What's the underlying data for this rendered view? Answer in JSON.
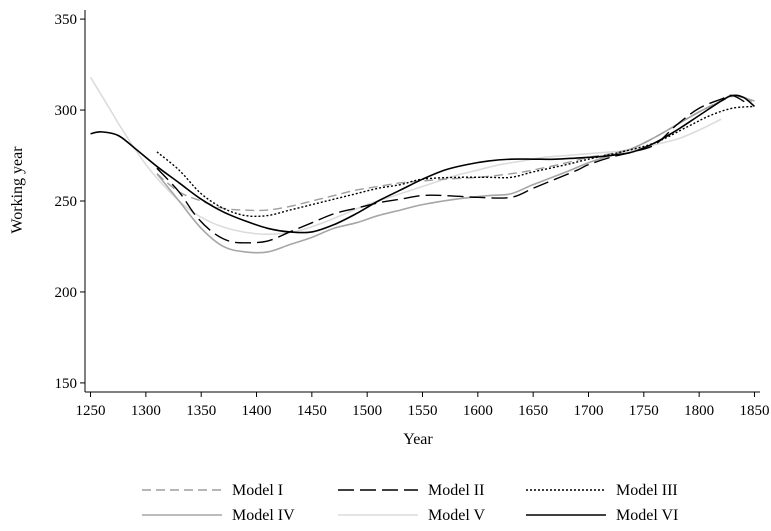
{
  "chart_data": {
    "type": "line",
    "title": "",
    "xlabel": "Year",
    "ylabel": "Working year",
    "xlim": [
      1245,
      1855
    ],
    "ylim": [
      145,
      355
    ],
    "xticks": [
      1250,
      1300,
      1350,
      1400,
      1450,
      1500,
      1550,
      1600,
      1650,
      1700,
      1750,
      1800,
      1850
    ],
    "yticks": [
      150,
      200,
      250,
      300,
      350
    ],
    "grid": false,
    "legend_position": "bottom",
    "series": [
      {
        "name": "Model I",
        "color": "#9e9e9e",
        "dash": "dashed",
        "points": [
          [
            1310,
            265
          ],
          [
            1330,
            255
          ],
          [
            1350,
            250
          ],
          [
            1370,
            246
          ],
          [
            1390,
            245
          ],
          [
            1410,
            245
          ],
          [
            1430,
            247
          ],
          [
            1450,
            250
          ],
          [
            1470,
            253
          ],
          [
            1490,
            256
          ],
          [
            1510,
            258
          ],
          [
            1530,
            260
          ],
          [
            1550,
            261
          ],
          [
            1570,
            262
          ],
          [
            1600,
            263
          ],
          [
            1630,
            265
          ],
          [
            1650,
            267
          ],
          [
            1680,
            271
          ],
          [
            1700,
            274
          ],
          [
            1720,
            276
          ],
          [
            1740,
            279
          ],
          [
            1760,
            285
          ],
          [
            1780,
            292
          ],
          [
            1800,
            299
          ],
          [
            1820,
            305
          ],
          [
            1835,
            308
          ],
          [
            1850,
            304
          ]
        ]
      },
      {
        "name": "Model II",
        "color": "#000000",
        "dash": "longdash",
        "points": [
          [
            1310,
            268
          ],
          [
            1330,
            255
          ],
          [
            1345,
            242
          ],
          [
            1360,
            233
          ],
          [
            1375,
            228
          ],
          [
            1390,
            227
          ],
          [
            1410,
            228
          ],
          [
            1430,
            233
          ],
          [
            1450,
            238
          ],
          [
            1470,
            243
          ],
          [
            1490,
            246
          ],
          [
            1510,
            249
          ],
          [
            1530,
            251
          ],
          [
            1550,
            253
          ],
          [
            1570,
            253
          ],
          [
            1600,
            252
          ],
          [
            1630,
            252
          ],
          [
            1650,
            257
          ],
          [
            1670,
            262
          ],
          [
            1690,
            267
          ],
          [
            1700,
            270
          ],
          [
            1720,
            274
          ],
          [
            1740,
            277
          ],
          [
            1760,
            281
          ],
          [
            1780,
            292
          ],
          [
            1800,
            301
          ],
          [
            1820,
            306
          ],
          [
            1830,
            308
          ],
          [
            1845,
            303
          ]
        ]
      },
      {
        "name": "Model III",
        "color": "#000000",
        "dash": "dotted",
        "points": [
          [
            1310,
            277
          ],
          [
            1330,
            267
          ],
          [
            1350,
            254
          ],
          [
            1370,
            246
          ],
          [
            1390,
            242
          ],
          [
            1410,
            242
          ],
          [
            1430,
            245
          ],
          [
            1450,
            248
          ],
          [
            1470,
            251
          ],
          [
            1490,
            254
          ],
          [
            1510,
            257
          ],
          [
            1530,
            259
          ],
          [
            1550,
            262
          ],
          [
            1580,
            263
          ],
          [
            1610,
            263
          ],
          [
            1630,
            263
          ],
          [
            1650,
            266
          ],
          [
            1680,
            270
          ],
          [
            1700,
            273
          ],
          [
            1730,
            277
          ],
          [
            1760,
            282
          ],
          [
            1790,
            291
          ],
          [
            1810,
            297
          ],
          [
            1830,
            301
          ],
          [
            1850,
            302
          ]
        ]
      },
      {
        "name": "Model IV",
        "color": "#a6a6a6",
        "dash": "solid",
        "points": [
          [
            1310,
            265
          ],
          [
            1330,
            250
          ],
          [
            1350,
            235
          ],
          [
            1370,
            225
          ],
          [
            1390,
            222
          ],
          [
            1410,
            222
          ],
          [
            1430,
            226
          ],
          [
            1450,
            230
          ],
          [
            1470,
            235
          ],
          [
            1490,
            238
          ],
          [
            1510,
            242
          ],
          [
            1530,
            245
          ],
          [
            1550,
            248
          ],
          [
            1580,
            251
          ],
          [
            1610,
            253
          ],
          [
            1630,
            254
          ],
          [
            1650,
            259
          ],
          [
            1680,
            266
          ],
          [
            1700,
            271
          ],
          [
            1720,
            275
          ],
          [
            1740,
            279
          ],
          [
            1760,
            285
          ],
          [
            1780,
            292
          ],
          [
            1800,
            299
          ],
          [
            1820,
            305
          ],
          [
            1830,
            308
          ],
          [
            1850,
            305
          ]
        ]
      },
      {
        "name": "Model V",
        "color": "#dcdcdc",
        "dash": "solid",
        "points": [
          [
            1250,
            318
          ],
          [
            1265,
            303
          ],
          [
            1280,
            288
          ],
          [
            1300,
            270
          ],
          [
            1320,
            256
          ],
          [
            1340,
            245
          ],
          [
            1360,
            238
          ],
          [
            1380,
            234
          ],
          [
            1400,
            232
          ],
          [
            1420,
            232
          ],
          [
            1440,
            234
          ],
          [
            1460,
            238
          ],
          [
            1480,
            243
          ],
          [
            1500,
            248
          ],
          [
            1520,
            252
          ],
          [
            1540,
            256
          ],
          [
            1560,
            260
          ],
          [
            1580,
            264
          ],
          [
            1600,
            267
          ],
          [
            1620,
            270
          ],
          [
            1640,
            272
          ],
          [
            1660,
            274
          ],
          [
            1680,
            275
          ],
          [
            1700,
            276
          ],
          [
            1720,
            277
          ],
          [
            1740,
            278
          ],
          [
            1760,
            281
          ],
          [
            1780,
            284
          ],
          [
            1800,
            289
          ],
          [
            1820,
            295
          ]
        ]
      },
      {
        "name": "Model VI",
        "color": "#000000",
        "dash": "solid",
        "points": [
          [
            1250,
            287
          ],
          [
            1260,
            288
          ],
          [
            1275,
            286
          ],
          [
            1290,
            279
          ],
          [
            1310,
            269
          ],
          [
            1330,
            260
          ],
          [
            1350,
            251
          ],
          [
            1370,
            244
          ],
          [
            1390,
            239
          ],
          [
            1410,
            235
          ],
          [
            1430,
            233
          ],
          [
            1450,
            233
          ],
          [
            1470,
            237
          ],
          [
            1490,
            243
          ],
          [
            1510,
            250
          ],
          [
            1530,
            256
          ],
          [
            1550,
            262
          ],
          [
            1570,
            267
          ],
          [
            1590,
            270
          ],
          [
            1610,
            272
          ],
          [
            1630,
            273
          ],
          [
            1650,
            273
          ],
          [
            1670,
            273
          ],
          [
            1700,
            274
          ],
          [
            1720,
            275
          ],
          [
            1740,
            277
          ],
          [
            1760,
            282
          ],
          [
            1780,
            289
          ],
          [
            1800,
            297
          ],
          [
            1820,
            305
          ],
          [
            1830,
            308
          ],
          [
            1840,
            307
          ],
          [
            1850,
            302
          ]
        ]
      }
    ]
  }
}
